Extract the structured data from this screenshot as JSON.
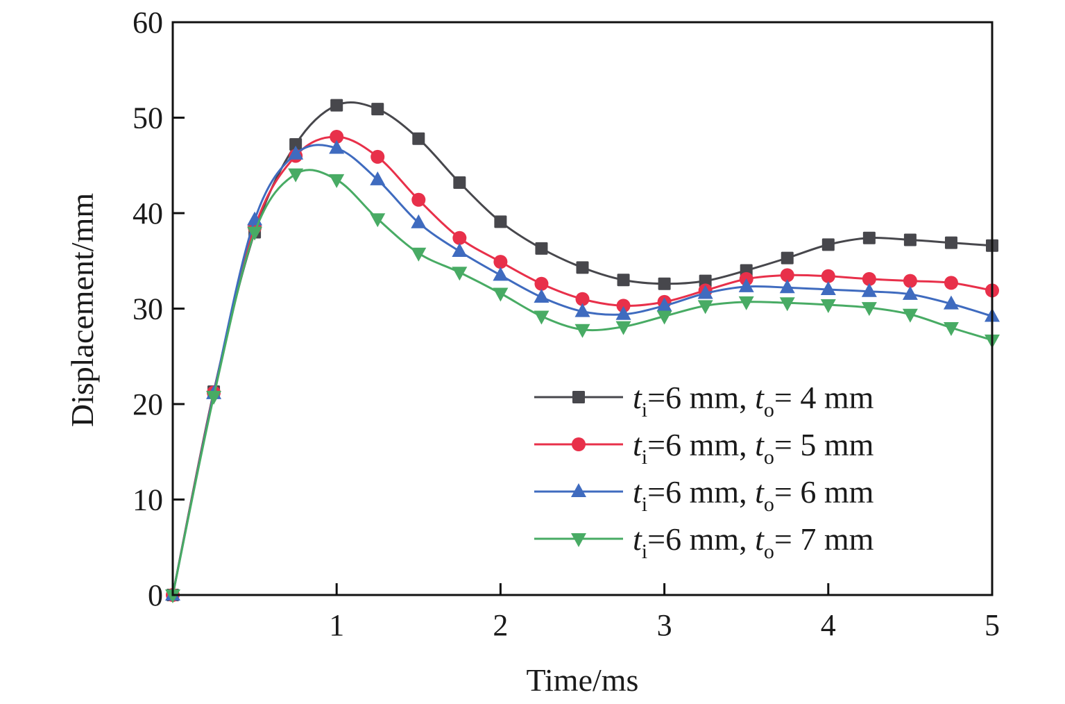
{
  "chart_data": {
    "type": "line",
    "title": "",
    "xlabel": "Time/ms",
    "ylabel": "Displacement/mm",
    "xlim": [
      0,
      5
    ],
    "ylim": [
      0,
      60
    ],
    "xticks": [
      1,
      2,
      3,
      4,
      5
    ],
    "xtick_labels": [
      "1",
      "2",
      "3",
      "4",
      "5"
    ],
    "yticks": [
      0,
      10,
      20,
      30,
      40,
      50,
      60
    ],
    "ytick_labels": [
      "0",
      "10",
      "20",
      "30",
      "40",
      "50",
      "60"
    ],
    "grid": false,
    "legend_position": "lower-right",
    "x": [
      0,
      0.25,
      0.5,
      0.75,
      1.0,
      1.25,
      1.5,
      1.75,
      2.0,
      2.25,
      2.5,
      2.75,
      3.0,
      3.25,
      3.5,
      3.75,
      4.0,
      4.25,
      4.5,
      4.75,
      5.0
    ],
    "series": [
      {
        "name": "t_i=6 mm, t_o= 4 mm",
        "legend": {
          "t1": "t",
          "s1": "i",
          "mid": "=6 mm, ",
          "t2": "t",
          "s2": "o",
          "end": "= 4 mm"
        },
        "color": "#47474c",
        "marker": "square",
        "values": [
          0,
          21.3,
          38.0,
          47.2,
          51.3,
          50.9,
          47.8,
          43.2,
          39.1,
          36.3,
          34.3,
          33.0,
          32.6,
          32.9,
          34.0,
          35.3,
          36.7,
          37.4,
          37.2,
          36.9,
          36.6
        ]
      },
      {
        "name": "t_i=6 mm, t_o= 5 mm",
        "legend": {
          "t1": "t",
          "s1": "i",
          "mid": "=6 mm, ",
          "t2": "t",
          "s2": "o",
          "end": "= 5 mm"
        },
        "color": "#e8304a",
        "marker": "circle",
        "values": [
          0,
          21.2,
          38.5,
          46.0,
          48.0,
          45.9,
          41.4,
          37.4,
          34.9,
          32.6,
          31.0,
          30.3,
          30.7,
          31.9,
          33.1,
          33.5,
          33.4,
          33.1,
          32.9,
          32.7,
          31.9
        ]
      },
      {
        "name": "t_i=6 mm, t_o= 6 mm",
        "legend": {
          "t1": "t",
          "s1": "i",
          "mid": "=6 mm, ",
          "t2": "t",
          "s2": "o",
          "end": "= 6 mm"
        },
        "color": "#3f6bbf",
        "marker": "triangle-up",
        "values": [
          0,
          21.1,
          39.3,
          46.2,
          46.8,
          43.5,
          39.0,
          36.0,
          33.5,
          31.2,
          29.7,
          29.4,
          30.3,
          31.6,
          32.3,
          32.2,
          32.0,
          31.8,
          31.5,
          30.5,
          29.2
        ]
      },
      {
        "name": "t_i=6 mm, t_o= 7 mm",
        "legend": {
          "t1": "t",
          "s1": "i",
          "mid": "=6 mm, ",
          "t2": "t",
          "s2": "o",
          "end": "= 7 mm"
        },
        "color": "#48ab64",
        "marker": "triangle-down",
        "values": [
          0,
          20.8,
          38.0,
          44.1,
          43.5,
          39.4,
          35.8,
          33.8,
          31.6,
          29.2,
          27.8,
          28.1,
          29.2,
          30.3,
          30.7,
          30.6,
          30.4,
          30.1,
          29.4,
          28.0,
          26.7
        ]
      }
    ]
  }
}
